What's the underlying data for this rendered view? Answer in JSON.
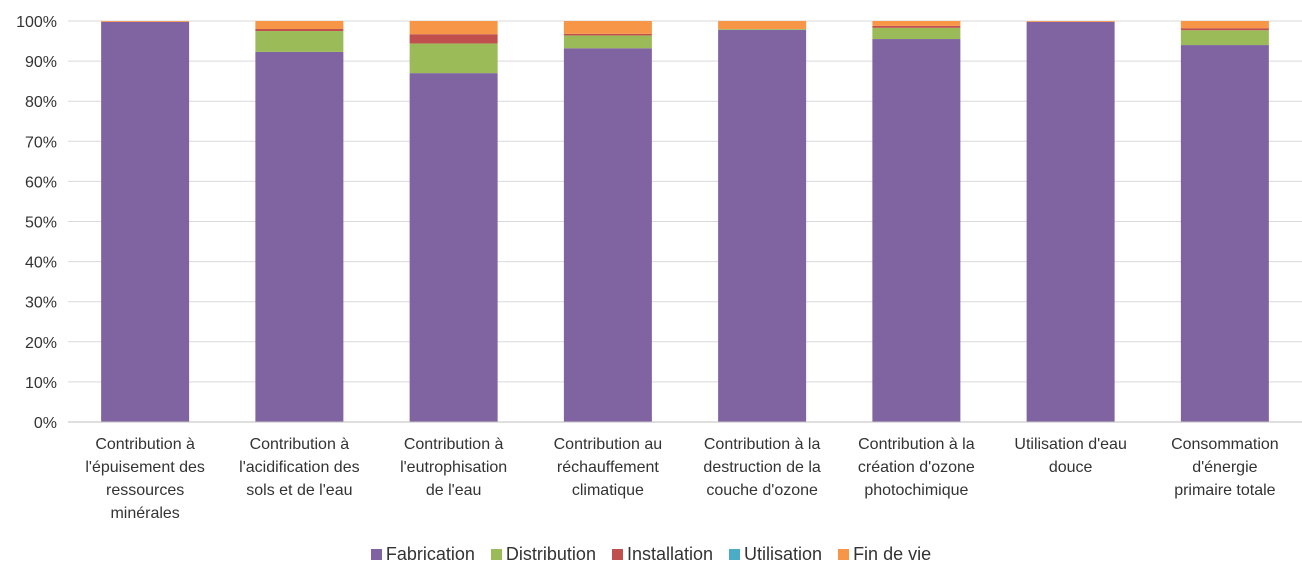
{
  "chart_data": {
    "type": "bar",
    "stacked": true,
    "categories": [
      [
        "Contribution à",
        "l'épuisement des",
        "ressources",
        "minérales"
      ],
      [
        "Contribution à",
        "l'acidification des",
        "sols et de l'eau"
      ],
      [
        "Contribution à",
        "l'eutrophisation",
        "de l'eau"
      ],
      [
        "Contribution au",
        "réchauffement",
        "climatique"
      ],
      [
        "Contribution à la",
        "destruction de la",
        "couche d'ozone"
      ],
      [
        "Contribution à la",
        "création d'ozone",
        "photochimique"
      ],
      [
        "Utilisation d'eau",
        "douce"
      ],
      [
        "Consommation",
        "d'énergie",
        "primaire totale"
      ]
    ],
    "series": [
      {
        "name": "Fabrication",
        "color": "#8064A2",
        "values": [
          99.8,
          92.3,
          87.0,
          93.2,
          97.8,
          95.5,
          99.8,
          94.0
        ]
      },
      {
        "name": "Distribution",
        "color": "#9BBB59",
        "values": [
          0.0,
          5.2,
          7.4,
          3.2,
          0.2,
          2.8,
          0.0,
          3.7
        ]
      },
      {
        "name": "Installation",
        "color": "#C0504D",
        "values": [
          0.0,
          0.5,
          2.3,
          0.4,
          0.0,
          0.5,
          0.0,
          0.5
        ]
      },
      {
        "name": "Utilisation",
        "color": "#4BACC6",
        "values": [
          0.0,
          0.0,
          0.0,
          0.0,
          0.0,
          0.0,
          0.0,
          0.0
        ]
      },
      {
        "name": "Fin de vie",
        "color": "#F79646",
        "values": [
          0.2,
          2.0,
          3.3,
          3.2,
          2.0,
          1.2,
          0.2,
          1.8
        ]
      }
    ],
    "yticks": [
      "0%",
      "10%",
      "20%",
      "30%",
      "40%",
      "50%",
      "60%",
      "70%",
      "80%",
      "90%",
      "100%"
    ],
    "ylim": [
      0,
      100
    ],
    "grid": true,
    "legend_position": "bottom"
  }
}
